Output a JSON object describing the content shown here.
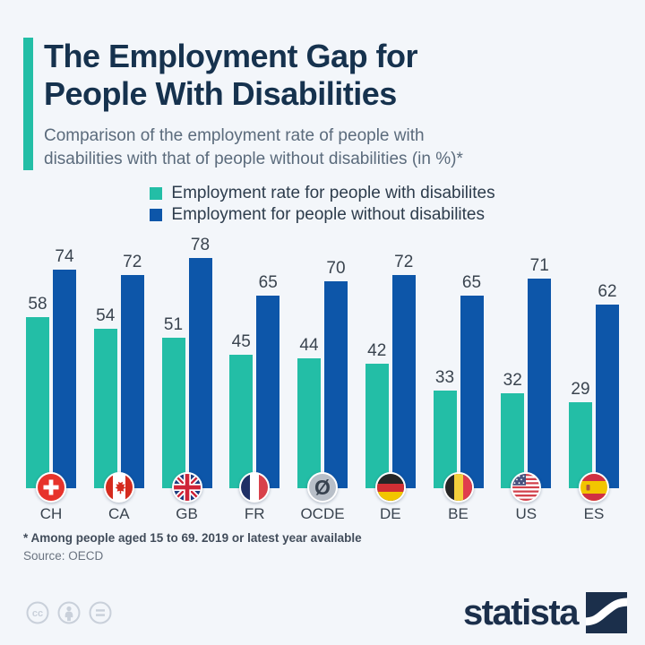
{
  "header": {
    "title": "The Employment Gap for\nPeople With Disabilities",
    "subtitle": "Comparison of the employment rate of people with\ndisabilities with that of people without disabilities (in %)*"
  },
  "legend": {
    "items": [
      {
        "label": "Employment rate for people with disabilites",
        "color": "#23bea6"
      },
      {
        "label": "Employment for people without disabilites",
        "color": "#0d56a9"
      }
    ]
  },
  "chart_data": {
    "type": "bar",
    "title": "The Employment Gap for People With Disabilities",
    "subtitle": "Comparison of the employment rate of people with disabilities with that of people without disabilities (in %)*",
    "categories": [
      "CH",
      "CA",
      "GB",
      "FR",
      "OCDE",
      "DE",
      "BE",
      "US",
      "ES"
    ],
    "series": [
      {
        "name": "Employment rate for people with disabilites",
        "color": "#23bea6",
        "values": [
          58,
          54,
          51,
          45,
          44,
          42,
          33,
          32,
          29
        ]
      },
      {
        "name": "Employment for people without disabilites",
        "color": "#0d56a9",
        "values": [
          74,
          72,
          78,
          65,
          70,
          72,
          65,
          71,
          62
        ]
      }
    ],
    "unit": "%",
    "ylim": [
      0,
      80
    ],
    "grid": false,
    "value_labels": true,
    "legend_position": "top",
    "flags": [
      "ch-flag-icon",
      "ca-flag-icon",
      "gb-flag-icon",
      "fr-flag-icon",
      "ocde-average-icon",
      "de-flag-icon",
      "be-flag-icon",
      "us-flag-icon",
      "es-flag-icon"
    ]
  },
  "footer": {
    "footnote": "* Among people aged 15 to 69. 2019 or latest year available",
    "source": "Source: OECD",
    "brand": "statista",
    "license_icons": [
      "cc-icon",
      "attribution-person-icon",
      "equal-icon"
    ]
  },
  "colors": {
    "background": "#f3f6fa",
    "accent_teal": "#23bea6",
    "bar_blue": "#0d56a9",
    "title_navy": "#16324e",
    "subtitle_gray": "#5b6b7c",
    "brand_navy": "#1b2f4b"
  }
}
